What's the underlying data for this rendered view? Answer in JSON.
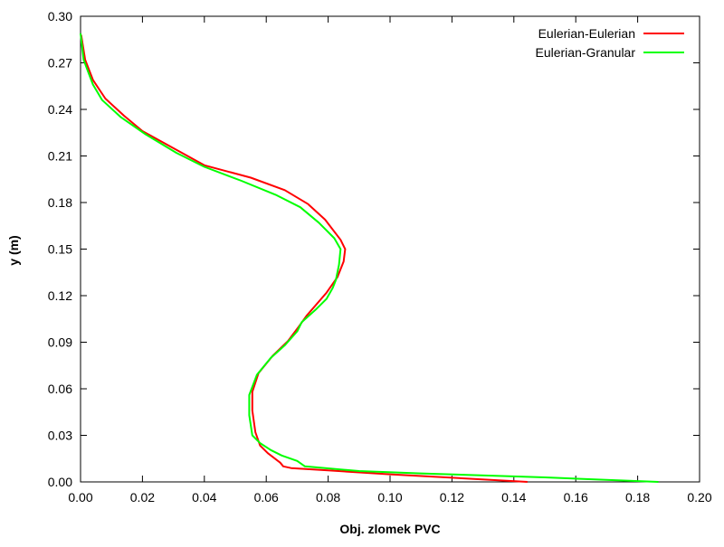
{
  "chart_data": {
    "type": "line",
    "title": "",
    "xlabel": "Obj. zlomek PVC",
    "ylabel": "y (m)",
    "xlim": [
      0.0,
      0.2
    ],
    "ylim": [
      0.0,
      0.3
    ],
    "x_ticks": [
      "0.00",
      "0.02",
      "0.04",
      "0.06",
      "0.08",
      "0.10",
      "0.12",
      "0.14",
      "0.16",
      "0.18",
      "0.20"
    ],
    "y_ticks": [
      "0.00",
      "0.03",
      "0.06",
      "0.09",
      "0.12",
      "0.15",
      "0.18",
      "0.21",
      "0.24",
      "0.27",
      "0.30"
    ],
    "grid": false,
    "legend_position": "top-right",
    "series": [
      {
        "name": "Eulerian-Eulerian",
        "color": "#ff0000",
        "points": [
          [
            0.1444,
            0.0
          ],
          [
            0.1,
            0.0049
          ],
          [
            0.08,
            0.0074
          ],
          [
            0.068,
            0.0089
          ],
          [
            0.0655,
            0.01
          ],
          [
            0.0645,
            0.0124
          ],
          [
            0.0605,
            0.0185
          ],
          [
            0.058,
            0.0234
          ],
          [
            0.0565,
            0.032
          ],
          [
            0.0555,
            0.046
          ],
          [
            0.0555,
            0.058
          ],
          [
            0.0575,
            0.07
          ],
          [
            0.062,
            0.081
          ],
          [
            0.067,
            0.0907
          ],
          [
            0.0705,
            0.1
          ],
          [
            0.073,
            0.107
          ],
          [
            0.0795,
            0.122
          ],
          [
            0.083,
            0.132
          ],
          [
            0.085,
            0.142
          ],
          [
            0.0855,
            0.15
          ],
          [
            0.084,
            0.156
          ],
          [
            0.079,
            0.169
          ],
          [
            0.0735,
            0.179
          ],
          [
            0.066,
            0.188
          ],
          [
            0.055,
            0.196
          ],
          [
            0.04,
            0.204
          ],
          [
            0.03,
            0.215
          ],
          [
            0.02,
            0.226
          ],
          [
            0.014,
            0.236
          ],
          [
            0.008,
            0.247
          ],
          [
            0.004,
            0.259
          ],
          [
            0.0015,
            0.272
          ],
          [
            0.0002,
            0.288
          ]
        ]
      },
      {
        "name": "Eulerian-Granular",
        "color": "#00ff00",
        "points": [
          [
            0.1867,
            0.0
          ],
          [
            0.15,
            0.0029
          ],
          [
            0.11,
            0.0055
          ],
          [
            0.09,
            0.007
          ],
          [
            0.0725,
            0.01
          ],
          [
            0.07,
            0.0135
          ],
          [
            0.065,
            0.017
          ],
          [
            0.0615,
            0.0205
          ],
          [
            0.058,
            0.025
          ],
          [
            0.0555,
            0.03
          ],
          [
            0.0545,
            0.043
          ],
          [
            0.0545,
            0.056
          ],
          [
            0.057,
            0.069
          ],
          [
            0.0615,
            0.08
          ],
          [
            0.066,
            0.088
          ],
          [
            0.07,
            0.097
          ],
          [
            0.0715,
            0.103
          ],
          [
            0.076,
            0.111
          ],
          [
            0.0795,
            0.118
          ],
          [
            0.0815,
            0.125
          ],
          [
            0.0825,
            0.13
          ],
          [
            0.0835,
            0.14
          ],
          [
            0.084,
            0.15
          ],
          [
            0.082,
            0.157
          ],
          [
            0.077,
            0.167
          ],
          [
            0.071,
            0.177
          ],
          [
            0.063,
            0.185
          ],
          [
            0.052,
            0.194
          ],
          [
            0.04,
            0.203
          ],
          [
            0.031,
            0.212
          ],
          [
            0.021,
            0.224
          ],
          [
            0.013,
            0.235
          ],
          [
            0.007,
            0.246
          ],
          [
            0.004,
            0.256
          ],
          [
            0.001,
            0.272
          ],
          [
            0.0,
            0.289
          ]
        ]
      }
    ]
  }
}
